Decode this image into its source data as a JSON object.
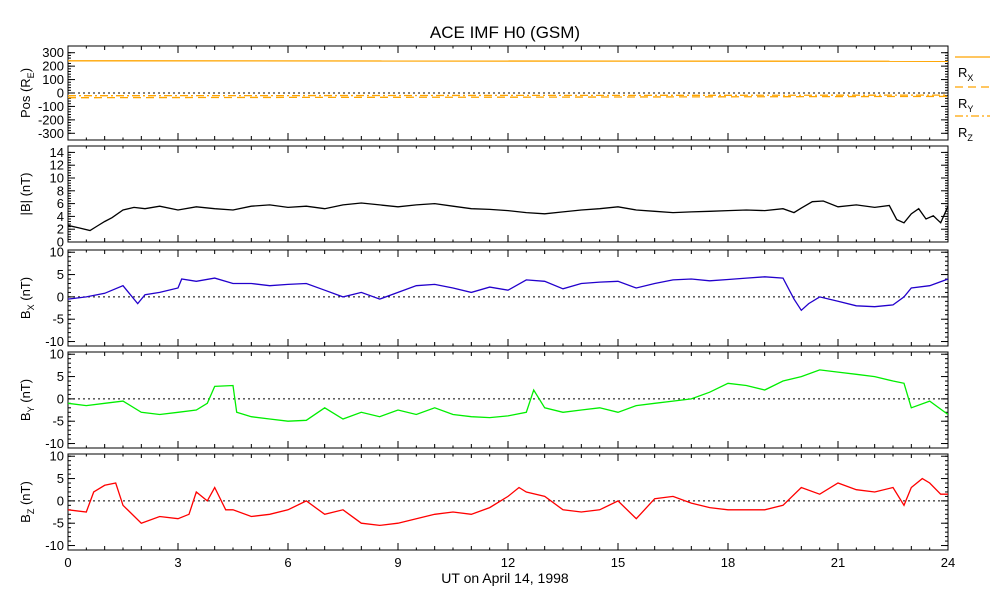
{
  "title": "ACE IMF H0 (GSM)",
  "xlabel": "UT on April 14, 1998",
  "x_ticks": [
    "0",
    "3",
    "6",
    "9",
    "12",
    "15",
    "18",
    "21",
    "24"
  ],
  "x_range": [
    0,
    24
  ],
  "colors": {
    "axes": "#000000",
    "rx": "#ffa500",
    "ry": "#ffa500",
    "rz": "#ffa500",
    "bmag": "#000000",
    "bx": "#2200cc",
    "by": "#00ee00",
    "bz": "#ff0000",
    "zero_line": "#000000"
  },
  "chart_data": [
    {
      "type": "line",
      "panel": "position",
      "ylabel": "Pos (RE)",
      "ylabel_main": "Pos (R",
      "ylabel_sub": "E",
      "ylabel_tail": ")",
      "ylim": [
        -350,
        350
      ],
      "y_ticks": [
        "300",
        "200",
        "100",
        "0",
        "-100",
        "-200",
        "-300"
      ],
      "y_tick_values": [
        300,
        200,
        100,
        0,
        -100,
        -200,
        -300
      ],
      "zero_dotted": true,
      "legend": "right",
      "series": [
        {
          "name": "RX",
          "style": "solid",
          "x": [
            0,
            24
          ],
          "y": [
            240,
            236
          ]
        },
        {
          "name": "RY",
          "style": "dashed",
          "x": [
            0,
            6,
            12,
            18,
            24
          ],
          "y": [
            -35,
            -33,
            -31,
            -28,
            -25
          ]
        },
        {
          "name": "RZ",
          "style": "dashdot",
          "x": [
            0,
            6,
            12,
            18,
            24
          ],
          "y": [
            -20,
            -19,
            -18,
            -17,
            -16
          ]
        }
      ]
    },
    {
      "type": "line",
      "panel": "bmag",
      "ylabel": "|B| (nT)",
      "ylim": [
        0,
        15
      ],
      "y_ticks": [
        "14",
        "12",
        "10",
        "8",
        "6",
        "4",
        "2",
        "0"
      ],
      "y_tick_values": [
        14,
        12,
        10,
        8,
        6,
        4,
        2,
        0
      ],
      "zero_dotted": false,
      "series": [
        {
          "x": [
            0,
            0.3,
            0.6,
            0.8,
            1.0,
            1.2,
            1.5,
            1.8,
            2.1,
            2.5,
            3.0,
            3.5,
            4.0,
            4.5,
            5.0,
            5.5,
            6.0,
            6.5,
            7.0,
            7.5,
            8.0,
            8.5,
            9.0,
            9.5,
            10.0,
            10.5,
            11.0,
            11.5,
            12.0,
            12.5,
            13.0,
            13.5,
            14.0,
            14.5,
            15.0,
            15.5,
            16.0,
            16.5,
            17.0,
            17.5,
            18.0,
            18.5,
            19.0,
            19.5,
            19.8,
            20.0,
            20.3,
            20.6,
            21.0,
            21.5,
            22.0,
            22.4,
            22.6,
            22.8,
            23.0,
            23.2,
            23.4,
            23.6,
            23.8,
            24.0
          ],
          "y": [
            2.6,
            2.2,
            1.8,
            2.5,
            3.2,
            3.8,
            5.0,
            5.4,
            5.2,
            5.6,
            5.0,
            5.5,
            5.2,
            5.0,
            5.6,
            5.8,
            5.4,
            5.6,
            5.2,
            5.8,
            6.1,
            5.8,
            5.5,
            5.8,
            6.0,
            5.6,
            5.2,
            5.1,
            4.9,
            4.6,
            4.4,
            4.7,
            5.0,
            5.2,
            5.5,
            5.0,
            4.8,
            4.6,
            4.7,
            4.8,
            4.9,
            5.0,
            4.9,
            5.2,
            4.6,
            5.3,
            6.3,
            6.4,
            5.5,
            5.8,
            5.4,
            5.7,
            3.5,
            3.0,
            4.4,
            5.2,
            3.6,
            4.1,
            3.0,
            5.6
          ]
        }
      ]
    },
    {
      "type": "line",
      "panel": "bx",
      "ylabel": "BX (nT)",
      "ylabel_main": "B",
      "ylabel_sub": "X",
      "ylabel_tail": " (nT)",
      "ylim": [
        -11,
        10.5
      ],
      "y_ticks": [
        "10",
        "5",
        "0",
        "-5",
        "-10"
      ],
      "y_tick_values": [
        10,
        5,
        0,
        -5,
        -10
      ],
      "zero_dotted": true,
      "series": [
        {
          "x": [
            0,
            0.5,
            1.0,
            1.5,
            1.9,
            2.1,
            2.5,
            3.0,
            3.1,
            3.5,
            4.0,
            4.5,
            5.0,
            5.5,
            6.0,
            6.5,
            7.0,
            7.5,
            8.0,
            8.5,
            9.0,
            9.5,
            10.0,
            10.5,
            11.0,
            11.5,
            12.0,
            12.5,
            13.0,
            13.5,
            14.0,
            14.5,
            15.0,
            15.5,
            16.0,
            16.5,
            17.0,
            17.5,
            18.0,
            18.5,
            19.0,
            19.5,
            19.8,
            20.0,
            20.2,
            20.5,
            21.0,
            21.5,
            22.0,
            22.5,
            22.8,
            23.0,
            23.5,
            24.0
          ],
          "y": [
            -0.5,
            0,
            0.8,
            2.5,
            -1.5,
            0.5,
            1.0,
            2.0,
            4.0,
            3.5,
            4.2,
            3.0,
            3.0,
            2.5,
            2.8,
            3.0,
            1.5,
            0,
            1.0,
            -0.5,
            1.0,
            2.5,
            2.8,
            2.0,
            1.0,
            2.2,
            1.5,
            3.8,
            3.5,
            1.8,
            3.0,
            3.3,
            3.5,
            2.0,
            3.0,
            3.8,
            4.0,
            3.6,
            3.9,
            4.2,
            4.5,
            4.2,
            -0.5,
            -3.0,
            -1.5,
            0,
            -1.0,
            -2.0,
            -2.2,
            -1.8,
            0,
            2.0,
            2.5,
            4.0
          ]
        }
      ]
    },
    {
      "type": "line",
      "panel": "by",
      "ylabel": "BY (nT)",
      "ylabel_main": "B",
      "ylabel_sub": "Y",
      "ylabel_tail": " (nT)",
      "ylim": [
        -11,
        10.5
      ],
      "y_ticks": [
        "10",
        "5",
        "0",
        "-5",
        "-10"
      ],
      "y_tick_values": [
        10,
        5,
        0,
        -5,
        -10
      ],
      "zero_dotted": true,
      "series": [
        {
          "x": [
            0,
            0.5,
            1.0,
            1.5,
            2.0,
            2.5,
            3.0,
            3.5,
            3.8,
            4.0,
            4.5,
            4.6,
            5.0,
            5.5,
            6.0,
            6.5,
            7.0,
            7.5,
            8.0,
            8.5,
            9.0,
            9.5,
            10.0,
            10.5,
            11.0,
            11.5,
            12.0,
            12.5,
            12.7,
            13.0,
            13.5,
            14.0,
            14.5,
            15.0,
            15.5,
            16.0,
            16.5,
            17.0,
            17.5,
            18.0,
            18.5,
            19.0,
            19.5,
            20.0,
            20.5,
            21.0,
            21.5,
            22.0,
            22.5,
            22.8,
            23.0,
            23.5,
            24.0
          ],
          "y": [
            -1.0,
            -1.5,
            -1.0,
            -0.5,
            -3.0,
            -3.5,
            -3.0,
            -2.5,
            -1.0,
            2.8,
            3.0,
            -3.0,
            -4.0,
            -4.5,
            -5.0,
            -4.8,
            -2.0,
            -4.5,
            -3.0,
            -4.0,
            -2.5,
            -3.5,
            -2.0,
            -3.5,
            -4.0,
            -4.2,
            -3.8,
            -3.0,
            2.0,
            -2.0,
            -3.0,
            -2.5,
            -2.0,
            -3.0,
            -1.5,
            -1.0,
            -0.5,
            0,
            1.5,
            3.5,
            3.0,
            2.0,
            4.0,
            5.0,
            6.5,
            6.0,
            5.5,
            5.0,
            4.0,
            3.5,
            -2.0,
            -0.5,
            -3.5
          ]
        }
      ]
    },
    {
      "type": "line",
      "panel": "bz",
      "ylabel": "BZ (nT)",
      "ylabel_main": "B",
      "ylabel_sub": "Z",
      "ylabel_tail": " (nT)",
      "ylim": [
        -11,
        10.5
      ],
      "y_ticks": [
        "10",
        "5",
        "0",
        "-5",
        "-10"
      ],
      "y_tick_values": [
        10,
        5,
        0,
        -5,
        -10
      ],
      "zero_dotted": true,
      "series": [
        {
          "x": [
            0,
            0.5,
            0.7,
            1.0,
            1.3,
            1.5,
            2.0,
            2.5,
            3.0,
            3.3,
            3.5,
            3.8,
            4.0,
            4.3,
            4.5,
            5.0,
            5.5,
            6.0,
            6.5,
            7.0,
            7.5,
            8.0,
            8.5,
            9.0,
            9.5,
            10.0,
            10.5,
            11.0,
            11.5,
            12.0,
            12.3,
            12.5,
            13.0,
            13.5,
            14.0,
            14.5,
            15.0,
            15.5,
            16.0,
            16.5,
            17.0,
            17.5,
            18.0,
            18.5,
            19.0,
            19.5,
            20.0,
            20.5,
            21.0,
            21.5,
            22.0,
            22.5,
            22.8,
            23.0,
            23.3,
            23.5,
            23.8,
            24.0
          ],
          "y": [
            -2.0,
            -2.5,
            2.0,
            3.5,
            4.0,
            -1.0,
            -5.0,
            -3.5,
            -4.0,
            -3.0,
            2.0,
            0,
            3.0,
            -2.0,
            -2.0,
            -3.5,
            -3.0,
            -2.0,
            0,
            -3.0,
            -2.0,
            -5.0,
            -5.5,
            -5.0,
            -4.0,
            -3.0,
            -2.5,
            -3.0,
            -1.5,
            1.0,
            3.0,
            2.0,
            1.0,
            -2.0,
            -2.5,
            -2.0,
            0,
            -4.0,
            0.5,
            1.0,
            -0.5,
            -1.5,
            -2.0,
            -2.0,
            -2.0,
            -1.0,
            3.0,
            1.5,
            4.0,
            2.5,
            2.0,
            3.0,
            -1.0,
            3.0,
            5.0,
            4.0,
            1.5,
            1.5
          ]
        }
      ]
    }
  ]
}
